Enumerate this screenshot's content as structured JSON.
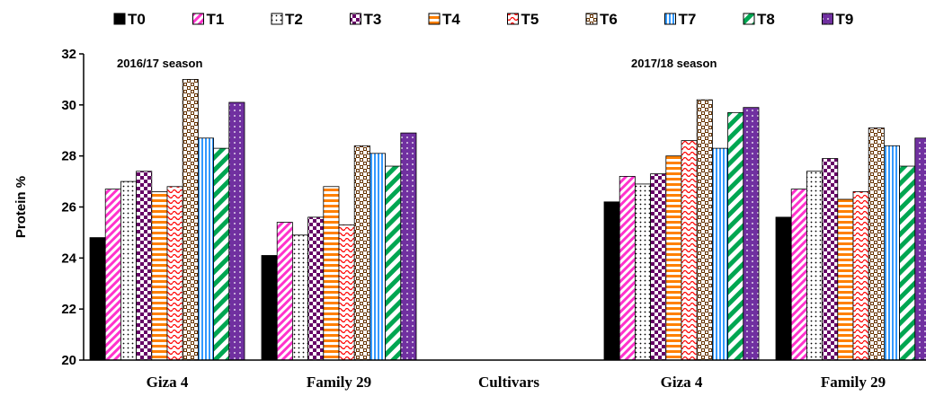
{
  "chart_data": {
    "type": "bar",
    "ylabel": "Protein %",
    "xlabel": "Cultivars",
    "ylim": [
      20,
      32
    ],
    "yticks": [
      20,
      22,
      24,
      26,
      28,
      30,
      32
    ],
    "legend_position": "top",
    "groups": [
      {
        "season": "2016/17 season",
        "cultivar": "Giza 4",
        "values": [
          24.8,
          26.7,
          27.0,
          27.4,
          26.6,
          26.8,
          31.0,
          28.7,
          28.3,
          30.1
        ]
      },
      {
        "season": "",
        "cultivar": "Family 29",
        "values": [
          24.1,
          25.4,
          24.9,
          25.6,
          26.8,
          25.3,
          28.4,
          28.1,
          27.6,
          28.9
        ]
      },
      {
        "season": "2017/18 season",
        "cultivar": "Giza 4",
        "values": [
          26.2,
          27.2,
          26.9,
          27.3,
          28.0,
          28.6,
          30.2,
          28.3,
          29.7,
          29.9
        ]
      },
      {
        "season": "",
        "cultivar": "Family 29",
        "values": [
          25.6,
          26.7,
          27.4,
          27.9,
          26.3,
          26.6,
          29.1,
          28.4,
          27.6,
          28.7
        ]
      }
    ],
    "series": [
      {
        "name": "T0",
        "color": "#000000",
        "pattern": "solid"
      },
      {
        "name": "T1",
        "color": "#ff33cc",
        "pattern": "diagonal"
      },
      {
        "name": "T2",
        "color": "#000000",
        "pattern": "dots"
      },
      {
        "name": "T3",
        "color": "#660066",
        "pattern": "checker"
      },
      {
        "name": "T4",
        "color": "#ff8000",
        "pattern": "horizontal"
      },
      {
        "name": "T5",
        "color": "#ff0000",
        "pattern": "wave"
      },
      {
        "name": "T6",
        "color": "#663300",
        "pattern": "brick"
      },
      {
        "name": "T7",
        "color": "#3399ff",
        "pattern": "vertical"
      },
      {
        "name": "T8",
        "color": "#00a651",
        "pattern": "wide-diagonal"
      },
      {
        "name": "T9",
        "color": "#7030a0",
        "pattern": "solid-dots"
      }
    ]
  }
}
